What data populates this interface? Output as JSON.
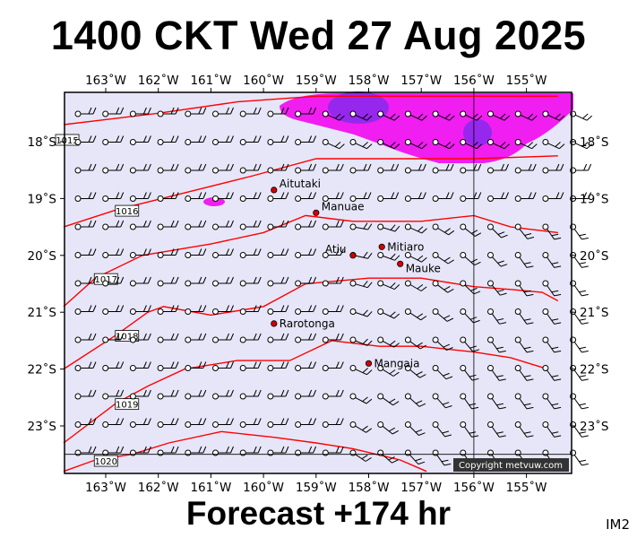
{
  "title": "1400 CKT Wed 27 Aug 2025",
  "forecast_label": "Forecast +174 hr",
  "image_code": "IM2",
  "copyright": "Copyright metvuw.com",
  "longitudes": [
    {
      "lon": -163,
      "label": "163˚W"
    },
    {
      "lon": -162,
      "label": "162˚W"
    },
    {
      "lon": -161,
      "label": "161˚W"
    },
    {
      "lon": -160,
      "label": "160˚W"
    },
    {
      "lon": -159,
      "label": "159˚W"
    },
    {
      "lon": -158,
      "label": "158˚W"
    },
    {
      "lon": -157,
      "label": "157˚W"
    },
    {
      "lon": -156,
      "label": "156˚W"
    },
    {
      "lon": -155,
      "label": "155˚W"
    }
  ],
  "latitudes": [
    {
      "lat": -18,
      "label": "18˚S"
    },
    {
      "lat": -19,
      "label": "19˚S"
    },
    {
      "lat": -20,
      "label": "20˚S"
    },
    {
      "lat": -21,
      "label": "21˚S"
    },
    {
      "lat": -22,
      "label": "22˚S"
    },
    {
      "lat": -23,
      "label": "23˚S"
    }
  ],
  "islands": [
    {
      "name": "Aitutaki",
      "lon": -159.8,
      "lat": -18.85
    },
    {
      "name": "Manuae",
      "lon": -159.0,
      "lat": -19.25
    },
    {
      "name": "Mitiaro",
      "lon": -157.75,
      "lat": -19.85
    },
    {
      "name": "Atiu",
      "lon": -158.3,
      "lat": -20.0
    },
    {
      "name": "Mauke",
      "lon": -157.4,
      "lat": -20.15
    },
    {
      "name": "Rarotonga",
      "lon": -159.8,
      "lat": -21.2
    },
    {
      "name": "Mangaia",
      "lon": -158.0,
      "lat": -21.9
    }
  ],
  "isobars": [
    {
      "label": "1015",
      "points": [
        [
          -163.8,
          -17.7
        ],
        [
          -162,
          -17.5
        ],
        [
          -160.5,
          -17.3
        ],
        [
          -159,
          -17.2
        ],
        [
          -157.5,
          -17.2
        ],
        [
          -156,
          -17.2
        ],
        [
          -154.4,
          -17.2
        ]
      ]
    },
    {
      "label": "1016",
      "points": [
        [
          -163.8,
          -19.5
        ],
        [
          -162.8,
          -19.2
        ],
        [
          -161.5,
          -18.9
        ],
        [
          -160.2,
          -18.6
        ],
        [
          -159,
          -18.3
        ],
        [
          -157.5,
          -18.3
        ],
        [
          -156,
          -18.3
        ],
        [
          -154.4,
          -18.25
        ]
      ]
    },
    {
      "label": "1017",
      "points": [
        [
          -163.8,
          -20.9
        ],
        [
          -163.2,
          -20.4
        ],
        [
          -162.3,
          -20.0
        ],
        [
          -161,
          -19.8
        ],
        [
          -160,
          -19.6
        ],
        [
          -159.2,
          -19.3
        ],
        [
          -158.3,
          -19.4
        ],
        [
          -157,
          -19.4
        ],
        [
          -156,
          -19.3
        ],
        [
          -155.3,
          -19.5
        ],
        [
          -154.4,
          -19.6
        ]
      ]
    },
    {
      "label": "1018",
      "points": [
        [
          -163.8,
          -22.0
        ],
        [
          -162.8,
          -21.4
        ],
        [
          -162.2,
          -21.0
        ],
        [
          -161.9,
          -20.9
        ],
        [
          -161,
          -21.05
        ],
        [
          -160,
          -20.9
        ],
        [
          -159.2,
          -20.5
        ],
        [
          -158,
          -20.4
        ],
        [
          -157,
          -20.4
        ],
        [
          -156,
          -20.55
        ],
        [
          -155.3,
          -20.6
        ],
        [
          -154.7,
          -20.65
        ],
        [
          -154.4,
          -20.8
        ]
      ]
    },
    {
      "label": "1019",
      "points": [
        [
          -163.8,
          -23.3
        ],
        [
          -162.8,
          -22.6
        ],
        [
          -162.2,
          -22.3
        ],
        [
          -161.5,
          -22.0
        ],
        [
          -160.5,
          -21.85
        ],
        [
          -159.5,
          -21.85
        ],
        [
          -158.7,
          -21.5
        ],
        [
          -157.8,
          -21.6
        ],
        [
          -157,
          -21.6
        ],
        [
          -156,
          -21.7
        ],
        [
          -155.3,
          -21.8
        ],
        [
          -154.6,
          -22.0
        ]
      ]
    },
    {
      "label": "1020",
      "points": [
        [
          -163.8,
          -23.8
        ],
        [
          -163.2,
          -23.6
        ],
        [
          -162.5,
          -23.5
        ],
        [
          -161.8,
          -23.3
        ],
        [
          -160.8,
          -23.1
        ],
        [
          -159.8,
          -23.2
        ],
        [
          -159,
          -23.3
        ],
        [
          -158.3,
          -23.4
        ],
        [
          -157.4,
          -23.6
        ],
        [
          -156.9,
          -23.8
        ]
      ]
    }
  ],
  "colors": {
    "ocean": "#e6e6f8",
    "isobar": "#ff0000",
    "island": "#d40000",
    "rain_light": "#f01ef0",
    "rain_heavy": "#9628ee",
    "frame": "#000000"
  }
}
